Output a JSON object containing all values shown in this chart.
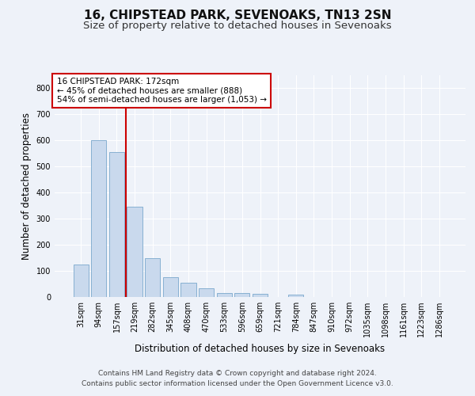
{
  "title1": "16, CHIPSTEAD PARK, SEVENOAKS, TN13 2SN",
  "title2": "Size of property relative to detached houses in Sevenoaks",
  "xlabel": "Distribution of detached houses by size in Sevenoaks",
  "ylabel": "Number of detached properties",
  "categories": [
    "31sqm",
    "94sqm",
    "157sqm",
    "219sqm",
    "282sqm",
    "345sqm",
    "408sqm",
    "470sqm",
    "533sqm",
    "596sqm",
    "659sqm",
    "721sqm",
    "784sqm",
    "847sqm",
    "910sqm",
    "972sqm",
    "1035sqm",
    "1098sqm",
    "1161sqm",
    "1223sqm",
    "1286sqm"
  ],
  "values": [
    125,
    600,
    555,
    347,
    148,
    77,
    55,
    33,
    15,
    15,
    12,
    0,
    8,
    0,
    0,
    0,
    0,
    0,
    0,
    0,
    0
  ],
  "bar_color": "#c9d9ed",
  "bar_edge_color": "#7aa8cc",
  "vline_x": 2.5,
  "vline_color": "#cc0000",
  "annotation_text": "16 CHIPSTEAD PARK: 172sqm\n← 45% of detached houses are smaller (888)\n54% of semi-detached houses are larger (1,053) →",
  "annotation_box_color": "#ffffff",
  "annotation_box_edge": "#cc0000",
  "ylim": [
    0,
    850
  ],
  "yticks": [
    0,
    100,
    200,
    300,
    400,
    500,
    600,
    700,
    800
  ],
  "footer1": "Contains HM Land Registry data © Crown copyright and database right 2024.",
  "footer2": "Contains public sector information licensed under the Open Government Licence v3.0.",
  "bg_color": "#eef2f9",
  "plot_bg_color": "#eef2f9",
  "grid_color": "#ffffff",
  "title1_fontsize": 11,
  "title2_fontsize": 9.5,
  "tick_fontsize": 7,
  "label_fontsize": 8.5,
  "footer_fontsize": 6.5,
  "ann_fontsize": 7.5
}
